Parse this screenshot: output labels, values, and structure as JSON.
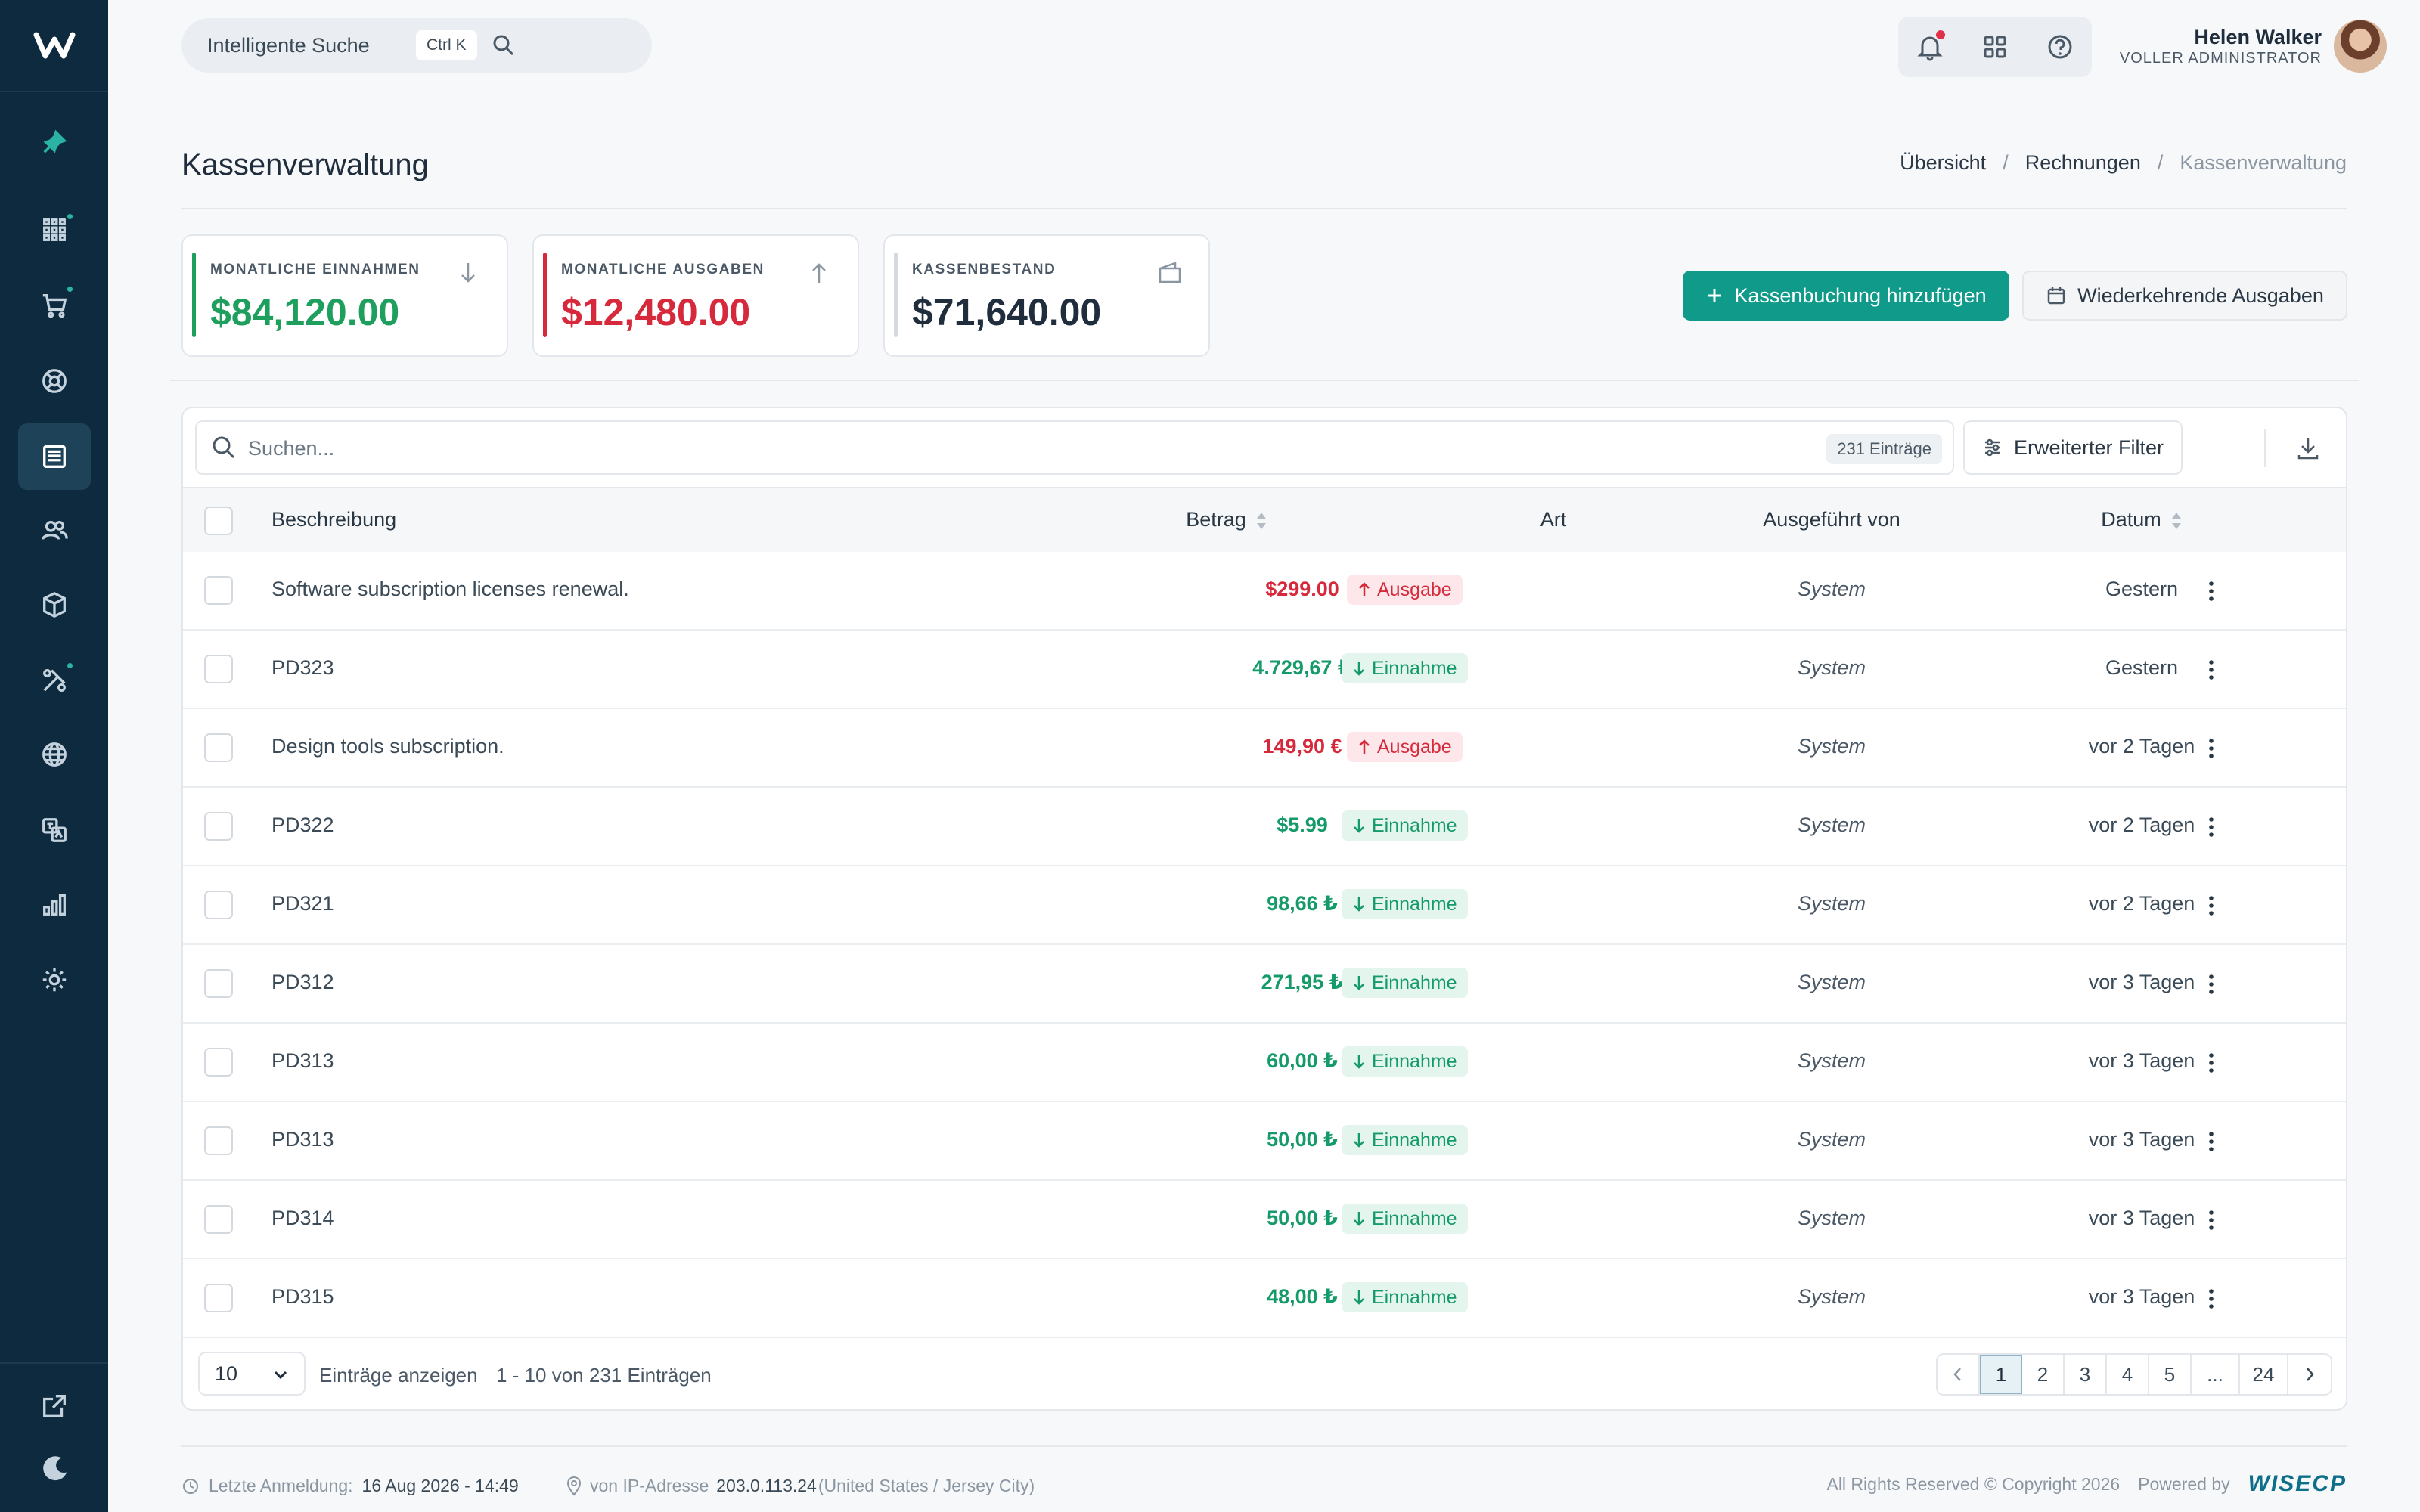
{
  "topbar": {
    "search_placeholder": "Intelligente Suche",
    "search_shortcut": "Ctrl K",
    "user_name": "Helen Walker",
    "user_role": "VOLLER ADMINISTRATOR"
  },
  "page": {
    "title": "Kassenverwaltung",
    "breadcrumb": [
      "Übersicht",
      "Rechnungen",
      "Kassenverwaltung"
    ]
  },
  "stats": [
    {
      "label": "MONATLICHE EINNAHMEN",
      "value": "$84,120.00",
      "color": "#1e9f5e",
      "icon": "arrow-down-icon"
    },
    {
      "label": "MONATLICHE AUSGABEN",
      "value": "$12,480.00",
      "color": "#d62a3c",
      "icon": "arrow-up-icon"
    },
    {
      "label": "KASSENBESTAND",
      "value": "$71,640.00",
      "color": "#1f2d3d",
      "icon": "wallet-icon"
    }
  ],
  "actions": {
    "add_label": "Kassenbuchung hinzufügen",
    "recurring_label": "Wiederkehrende Ausgaben"
  },
  "table": {
    "search_placeholder": "Suchen...",
    "entries_badge": "231 Einträge",
    "filter_label": "Erweiterter Filter",
    "columns": [
      "Beschreibung",
      "Betrag",
      "Art",
      "Ausgeführt von",
      "Datum"
    ],
    "rows": [
      {
        "desc": "Software subscription licenses renewal.",
        "amount": "$299.00",
        "type": "Ausgabe",
        "dir": "out",
        "by": "System",
        "date": "Gestern"
      },
      {
        "desc": "PD323",
        "amount": "4.729,67 ₺",
        "type": "Einnahme",
        "dir": "in",
        "by": "System",
        "date": "Gestern"
      },
      {
        "desc": "Design tools subscription.",
        "amount": "149,90 €",
        "type": "Ausgabe",
        "dir": "out",
        "by": "System",
        "date": "vor 2 Tagen"
      },
      {
        "desc": "PD322",
        "amount": "$5.99",
        "type": "Einnahme",
        "dir": "in",
        "by": "System",
        "date": "vor 2 Tagen"
      },
      {
        "desc": "PD321",
        "amount": "98,66 ₺",
        "type": "Einnahme",
        "dir": "in",
        "by": "System",
        "date": "vor 2 Tagen"
      },
      {
        "desc": "PD312",
        "amount": "271,95 ₺",
        "type": "Einnahme",
        "dir": "in",
        "by": "System",
        "date": "vor 3 Tagen"
      },
      {
        "desc": "PD313",
        "amount": "60,00 ₺",
        "type": "Einnahme",
        "dir": "in",
        "by": "System",
        "date": "vor 3 Tagen"
      },
      {
        "desc": "PD313",
        "amount": "50,00 ₺",
        "type": "Einnahme",
        "dir": "in",
        "by": "System",
        "date": "vor 3 Tagen"
      },
      {
        "desc": "PD314",
        "amount": "50,00 ₺",
        "type": "Einnahme",
        "dir": "in",
        "by": "System",
        "date": "vor 3 Tagen"
      },
      {
        "desc": "PD315",
        "amount": "48,00 ₺",
        "type": "Einnahme",
        "dir": "in",
        "by": "System",
        "date": "vor 3 Tagen"
      }
    ],
    "per_page": "10",
    "per_page_label": "Einträge anzeigen",
    "range_label": "1 - 10 von 231 Einträgen",
    "pages": [
      "1",
      "2",
      "3",
      "4",
      "5",
      "...",
      "24"
    ],
    "current_page": "1"
  },
  "footer": {
    "last_login_label": "Letzte Anmeldung:",
    "last_login_value": "16 Aug 2026 - 14:49",
    "ip_label": "von IP-Adresse",
    "ip_value": "203.0.113.24",
    "ip_location": "(United States / Jersey City)",
    "copyright": "All Rights Reserved © Copyright 2026",
    "powered_by": "Powered by",
    "brand": "WISECP"
  },
  "colors": {
    "sidebar": "#0e2a3e",
    "accent": "#0f9a8a",
    "income": "#159a6a",
    "expense": "#d62a3c"
  },
  "sidebar_icons": [
    "pin-icon",
    "grid-icon",
    "cart-icon",
    "support-icon",
    "invoice-icon",
    "users-icon",
    "box-icon",
    "tools-icon",
    "globe-icon",
    "translate-icon",
    "chart-icon",
    "settings-icon",
    "external-link-icon",
    "moon-icon"
  ]
}
